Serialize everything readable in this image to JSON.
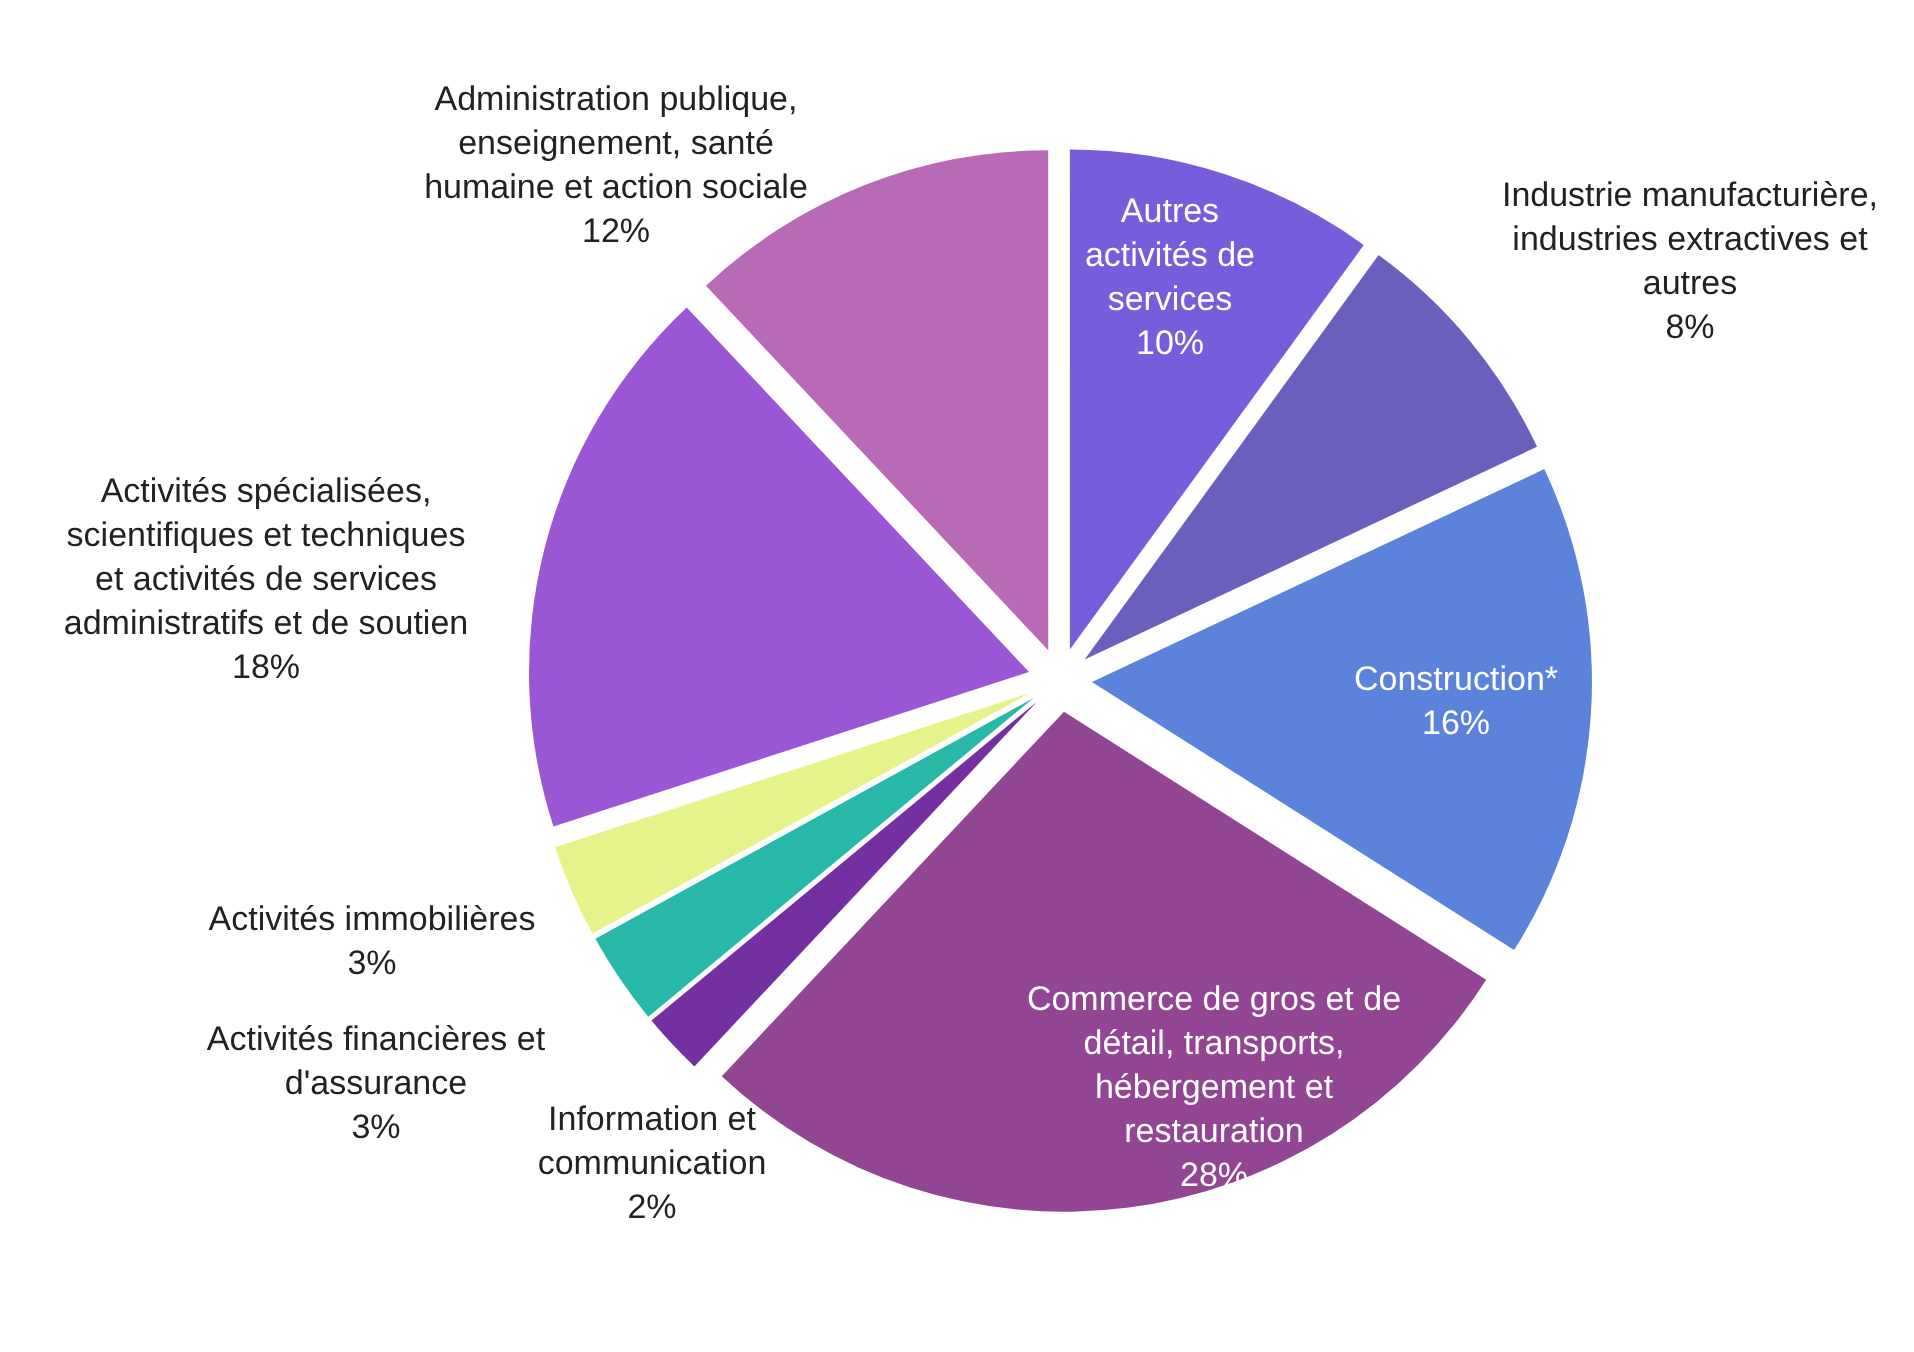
{
  "chart_data": {
    "type": "pie",
    "categories": [
      "Autres activités de services",
      "Industrie manufacturière, industries extractives et autres",
      "Construction*",
      "Commerce de gros et de détail, transports, hébergement et restauration",
      "Information et communication",
      "Activités financières et d'assurance",
      "Activités immobilières",
      "Activités spécialisées, scientifiques et techniques et activités de services administratifs et de soutien",
      "Administration publique, enseignement, santé humaine et action sociale"
    ],
    "values": [
      10,
      8,
      16,
      28,
      2,
      3,
      3,
      18,
      12
    ],
    "colors": [
      "#775ddb",
      "#6a5fbd",
      "#5b83db",
      "#924593",
      "#7430a0",
      "#27b8a8",
      "#e5f38a",
      "#9a56d4",
      "#b96ab7"
    ],
    "value_labels": [
      "10%",
      "8%",
      "16%",
      "28%",
      "2%",
      "3%",
      "3%",
      "18%",
      "12%"
    ],
    "legend": false
  }
}
